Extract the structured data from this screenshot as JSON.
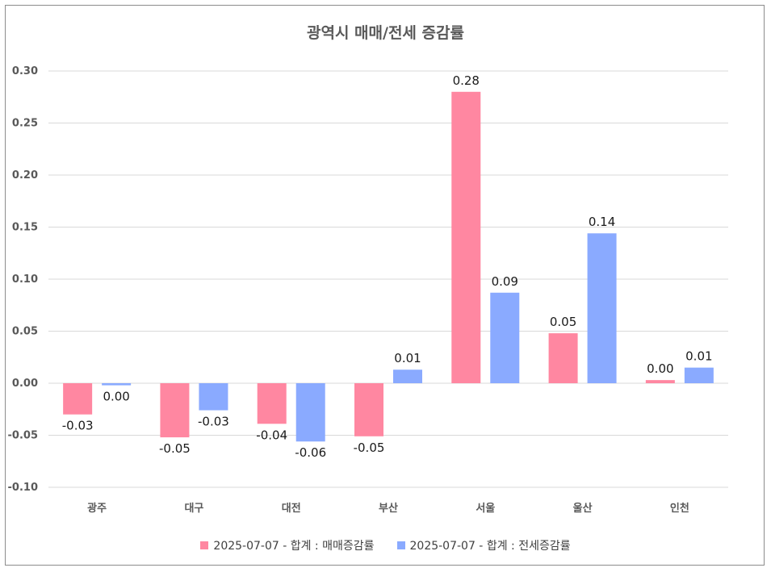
{
  "chart_data": {
    "type": "bar",
    "title": "광역시 매매/전세 증감률",
    "categories": [
      "광주",
      "대구",
      "대전",
      "부산",
      "서울",
      "울산",
      "인천"
    ],
    "series": [
      {
        "name": "2025-07-07 - 합계 : 매매증감률",
        "color": "#ff87a1",
        "values": [
          -0.03,
          -0.052,
          -0.039,
          -0.051,
          0.28,
          0.048,
          0.003
        ],
        "labels": [
          "-0.03",
          "-0.05",
          "-0.04",
          "-0.05",
          "0.28",
          "0.05",
          "0.00"
        ]
      },
      {
        "name": "2025-07-07 - 합계 : 전세증감률",
        "color": "#8aaaff",
        "values": [
          -0.002,
          -0.026,
          -0.056,
          0.013,
          0.087,
          0.144,
          0.015
        ],
        "labels": [
          "0.00",
          "-0.03",
          "-0.06",
          "0.01",
          "0.09",
          "0.14",
          "0.01"
        ]
      }
    ],
    "yticks": [
      "0.30",
      "0.25",
      "0.20",
      "0.15",
      "0.10",
      "0.05",
      "0.00",
      "-0.05",
      "-0.10"
    ],
    "ylim": [
      -0.1,
      0.3
    ],
    "grid": true,
    "legend_position": "bottom"
  }
}
